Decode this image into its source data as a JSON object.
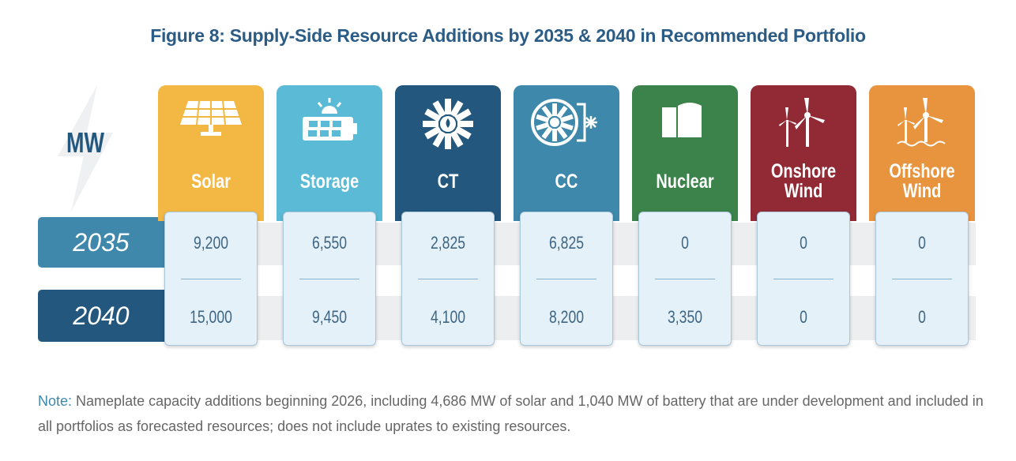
{
  "title": "Figure 8: Supply-Side Resource Additions by 2035 & 2040 in Recommended Portfolio",
  "unit_label": "MW",
  "note_label": "Note:",
  "note_text": "Nameplate capacity additions beginning 2026, including 4,686 MW of solar and 1,040 MW of battery that are under development and included in all portfolios as forecasted resources; does not include uprates to existing resources.",
  "colors": {
    "y2035": "#3f88ac",
    "y2040": "#24577d"
  },
  "chart_data": {
    "type": "table",
    "title": "Figure 8: Supply-Side Resource Additions by 2035 & 2040 in Recommended Portfolio",
    "unit": "MW",
    "years": [
      "2035",
      "2040"
    ],
    "resources": [
      {
        "name": "Solar",
        "icon": "solar-panel-icon",
        "color": "#f2b843",
        "values": [
          "9,200",
          "15,000"
        ]
      },
      {
        "name": "Storage",
        "icon": "battery-sun-icon",
        "color": "#5bbad6",
        "values": [
          "6,550",
          "9,450"
        ]
      },
      {
        "name": "CT",
        "icon": "turbine-flame-icon",
        "color": "#24577d",
        "values": [
          "2,825",
          "4,100"
        ]
      },
      {
        "name": "CC",
        "icon": "combined-cycle-icon",
        "color": "#3e88ab",
        "values": [
          "6,825",
          "8,200"
        ]
      },
      {
        "name": "Nuclear",
        "icon": "reactor-icon",
        "color": "#3b834a",
        "values": [
          "0",
          "3,350"
        ]
      },
      {
        "name": "Onshore Wind",
        "icon": "wind-turbine-icon",
        "color": "#922a36",
        "values": [
          "0",
          "0"
        ]
      },
      {
        "name": "Offshore Wind",
        "icon": "offshore-wind-icon",
        "color": "#e8933e",
        "values": [
          "0",
          "0"
        ]
      }
    ]
  }
}
